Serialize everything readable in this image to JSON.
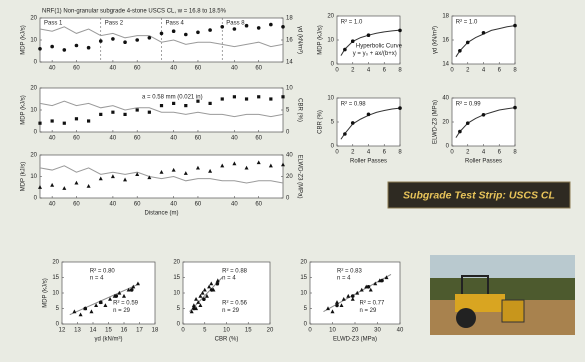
{
  "chart_data": [
    {
      "type": "line",
      "title": "NRF(1) Non-granular subgrade 4-stone USCS CL, w = 16.8 to 18.5%",
      "passes": [
        "Pass 1",
        "Pass 2",
        "Pass 4",
        "Pass 8"
      ],
      "ylabel": "MDP (kJ/s)",
      "y2label": "γd (kN/m³)",
      "x": [
        0,
        8,
        16,
        24,
        32,
        40,
        48,
        56,
        64,
        72,
        80,
        88,
        96,
        104,
        112,
        120,
        128,
        136,
        144,
        152,
        160
      ],
      "xlim": [
        0,
        160
      ],
      "xticks": [
        {
          "value": 8,
          "label": "40"
        },
        {
          "value": 24,
          "label": "60"
        },
        {
          "value": 48,
          "label": "40"
        },
        {
          "value": 64,
          "label": "60"
        },
        {
          "value": 88,
          "label": "40"
        },
        {
          "value": 104,
          "label": "60"
        },
        {
          "value": 128,
          "label": "40"
        },
        {
          "value": 144,
          "label": "60"
        }
      ],
      "ylim": [
        0,
        20
      ],
      "yticks": [
        0,
        10,
        20
      ],
      "y2lim": [
        14,
        18
      ],
      "y2ticks": [
        14,
        16,
        18
      ],
      "series": [
        {
          "color": "#9a9a9a",
          "mode": "line",
          "values": [
            15,
            14,
            16,
            13,
            15,
            12,
            13,
            11,
            12,
            12,
            9,
            10,
            8,
            9,
            9,
            8,
            7,
            8,
            9,
            7,
            8
          ]
        },
        {
          "color": "#111111",
          "mode": "points",
          "marker": "circle",
          "axis": "y2",
          "values": [
            15.2,
            15.4,
            15.1,
            15.5,
            15.3,
            15.9,
            16.1,
            15.8,
            16.0,
            16.2,
            16.6,
            16.8,
            16.5,
            16.7,
            16.9,
            17.2,
            17.0,
            17.3,
            17.1,
            17.4,
            17.2
          ]
        }
      ]
    },
    {
      "type": "line",
      "ylabel": "MDP (kJ/s)",
      "y2label": "CBR (%)",
      "annotations": [
        "a = 0.58 mm (0.021 in)"
      ],
      "x": [
        0,
        8,
        16,
        24,
        32,
        40,
        48,
        56,
        64,
        72,
        80,
        88,
        96,
        104,
        112,
        120,
        128,
        136,
        144,
        152,
        160
      ],
      "xlim": [
        0,
        160
      ],
      "xticks": [
        {
          "value": 8,
          "label": "40"
        },
        {
          "value": 24,
          "label": "60"
        },
        {
          "value": 48,
          "label": "40"
        },
        {
          "value": 64,
          "label": "60"
        },
        {
          "value": 88,
          "label": "40"
        },
        {
          "value": 104,
          "label": "60"
        },
        {
          "value": 128,
          "label": "40"
        },
        {
          "value": 144,
          "label": "60"
        }
      ],
      "ylim": [
        0,
        20
      ],
      "yticks": [
        0,
        10,
        20
      ],
      "y2lim": [
        0,
        10
      ],
      "y2ticks": [
        0,
        5,
        10
      ],
      "series": [
        {
          "color": "#9a9a9a",
          "mode": "line",
          "values": [
            13,
            12,
            14,
            12,
            13,
            11,
            12,
            10,
            11,
            11,
            9,
            9,
            8,
            9,
            8,
            8,
            7,
            8,
            8,
            7,
            8
          ]
        },
        {
          "color": "#111111",
          "mode": "points",
          "marker": "square",
          "axis": "y2",
          "values": [
            2,
            2.5,
            2,
            3,
            2.5,
            4,
            4.5,
            4,
            5,
            4.5,
            6,
            6.5,
            6,
            7,
            6.5,
            7.5,
            8,
            7.5,
            8,
            7.5,
            8
          ]
        }
      ]
    },
    {
      "type": "line",
      "ylabel": "MDP (kJ/s)",
      "y2label": "ELWD-Z3 (MPa)",
      "xlabel": "Distance (m)",
      "x": [
        0,
        8,
        16,
        24,
        32,
        40,
        48,
        56,
        64,
        72,
        80,
        88,
        96,
        104,
        112,
        120,
        128,
        136,
        144,
        152,
        160
      ],
      "xlim": [
        0,
        160
      ],
      "xticks": [
        {
          "value": 8,
          "label": "40"
        },
        {
          "value": 24,
          "label": "60"
        },
        {
          "value": 48,
          "label": "40"
        },
        {
          "value": 64,
          "label": "60"
        },
        {
          "value": 88,
          "label": "40"
        },
        {
          "value": 104,
          "label": "60"
        },
        {
          "value": 128,
          "label": "40"
        },
        {
          "value": 144,
          "label": "60"
        }
      ],
      "ylim": [
        0,
        20
      ],
      "yticks": [
        0,
        10,
        20
      ],
      "y2lim": [
        0,
        40
      ],
      "y2ticks": [
        0,
        20,
        40
      ],
      "series": [
        {
          "color": "#9a9a9a",
          "mode": "line",
          "values": [
            14,
            13,
            15,
            12,
            14,
            11,
            12,
            11,
            12,
            10,
            9,
            10,
            8,
            9,
            9,
            8,
            8,
            7,
            8,
            8,
            7
          ]
        },
        {
          "color": "#111111",
          "mode": "points",
          "marker": "triangle",
          "axis": "y2",
          "values": [
            10,
            12,
            9,
            14,
            11,
            18,
            20,
            17,
            22,
            19,
            24,
            26,
            23,
            28,
            25,
            30,
            32,
            28,
            33,
            30,
            31
          ]
        }
      ]
    },
    {
      "type": "scatter",
      "ylabel": "MDP (kJ/s)",
      "annotations": [
        "R² = 1.0",
        "Hyperbolic Curve",
        "y = y₀ + ax/(b+x)"
      ],
      "xlim": [
        0,
        8
      ],
      "xticks": [
        0,
        2,
        4,
        6,
        8
      ],
      "ylim": [
        0,
        20
      ],
      "yticks": [
        0,
        10,
        20
      ],
      "series": [
        {
          "color": "#333333",
          "mode": "line",
          "x": [
            0.5,
            1,
            2,
            3,
            4,
            5,
            6,
            7,
            8
          ],
          "values": [
            3.5,
            6.2,
            9.4,
            11,
            12,
            12.8,
            13.4,
            13.8,
            14.1
          ]
        },
        {
          "color": "#111111",
          "mode": "points",
          "marker": "circle",
          "x": [
            1,
            2,
            4,
            8
          ],
          "values": [
            6,
            9.5,
            12,
            14
          ]
        }
      ]
    },
    {
      "type": "scatter",
      "ylabel": "γd (kN/m³)",
      "annotations": [
        "R² = 1.0"
      ],
      "xlim": [
        0,
        8
      ],
      "xticks": [
        0,
        2,
        4,
        6,
        8
      ],
      "ylim": [
        14,
        18
      ],
      "yticks": [
        14,
        16,
        18
      ],
      "series": [
        {
          "color": "#333333",
          "mode": "line",
          "x": [
            0.5,
            1,
            2,
            3,
            4,
            5,
            6,
            7,
            8
          ],
          "values": [
            14.6,
            15.1,
            15.8,
            16.2,
            16.5,
            16.8,
            16.95,
            17.1,
            17.2
          ]
        },
        {
          "color": "#111111",
          "mode": "points",
          "marker": "circle",
          "x": [
            1,
            2,
            4,
            8
          ],
          "values": [
            15.1,
            15.8,
            16.6,
            17.2
          ]
        }
      ]
    },
    {
      "type": "scatter",
      "ylabel": "CBR (%)",
      "xlabel": "Roller Passes",
      "annotations": [
        "R² = 0.98"
      ],
      "xlim": [
        0,
        8
      ],
      "xticks": [
        0,
        2,
        4,
        6,
        8
      ],
      "ylim": [
        0,
        10
      ],
      "yticks": [
        0,
        5,
        10
      ],
      "series": [
        {
          "color": "#333333",
          "mode": "line",
          "x": [
            0.5,
            1,
            2,
            3,
            4,
            5,
            6,
            7,
            8
          ],
          "values": [
            1.4,
            2.6,
            4.6,
            5.6,
            6.4,
            7.0,
            7.4,
            7.7,
            7.9
          ]
        },
        {
          "color": "#111111",
          "mode": "points",
          "marker": "circle",
          "x": [
            1,
            2,
            4,
            8
          ],
          "values": [
            2.5,
            4.8,
            6.6,
            7.9
          ]
        }
      ]
    },
    {
      "type": "scatter",
      "ylabel": "ELWD-Z3 (MPa)",
      "xlabel": "Roller Passes",
      "annotations": [
        "R² = 0.99"
      ],
      "xlim": [
        0,
        8
      ],
      "xticks": [
        0,
        2,
        4,
        6,
        8
      ],
      "ylim": [
        0,
        40
      ],
      "yticks": [
        0,
        20,
        40
      ],
      "series": [
        {
          "color": "#333333",
          "mode": "line",
          "x": [
            0.5,
            1,
            2,
            3,
            4,
            5,
            6,
            7,
            8
          ],
          "values": [
            7,
            12,
            19,
            23,
            26,
            28,
            30,
            31,
            32
          ]
        },
        {
          "color": "#111111",
          "mode": "points",
          "marker": "circle",
          "x": [
            1,
            2,
            4,
            8
          ],
          "values": [
            12,
            19,
            26,
            32
          ]
        }
      ]
    },
    {
      "type": "scatter",
      "ylabel": "MDP (kJ/s)",
      "xlabel": "γd (kN/m³)",
      "annotations": [
        "R² = 0.80",
        "n = 4",
        "R² = 0.59",
        "n = 29"
      ],
      "xlim": [
        12,
        18
      ],
      "xticks": [
        12,
        13,
        14,
        15,
        16,
        17,
        18
      ],
      "ylim": [
        0,
        20
      ],
      "yticks": [
        0,
        5,
        10,
        15,
        20
      ],
      "series": [
        {
          "color": "#888888",
          "mode": "line",
          "x": [
            12.5,
            17
          ],
          "values": [
            3,
            13
          ]
        },
        {
          "color": "#111111",
          "mode": "points",
          "marker": "triangle",
          "x": [
            12.8,
            13.2,
            13.5,
            13.9,
            14.2,
            14.5,
            14.8,
            15.1,
            15.4,
            15.7,
            16.0,
            16.3,
            16.6,
            16.9
          ],
          "values": [
            4,
            3,
            5,
            4,
            6,
            7,
            6,
            8,
            9,
            10,
            9,
            11,
            12,
            13
          ]
        },
        {
          "color": "#111111",
          "mode": "points",
          "marker": "circle",
          "x": [
            13.5,
            14.5,
            15.5,
            16.5
          ],
          "values": [
            5,
            7,
            9,
            11
          ]
        }
      ]
    },
    {
      "type": "scatter",
      "xlabel": "CBR (%)",
      "annotations": [
        "R² = 0.88",
        "n = 4",
        "R² = 0.56",
        "n = 29"
      ],
      "xlim": [
        0,
        20
      ],
      "xticks": [
        0,
        5,
        10,
        15,
        20
      ],
      "ylim": [
        0,
        20
      ],
      "yticks": [
        0,
        5,
        10,
        15,
        20
      ],
      "series": [
        {
          "color": "#888888",
          "mode": "line",
          "x": [
            1.5,
            9
          ],
          "values": [
            4,
            15
          ]
        },
        {
          "color": "#111111",
          "mode": "points",
          "marker": "triangle",
          "x": [
            2,
            2.5,
            3,
            3,
            3.5,
            4,
            4,
            4.5,
            5,
            5.5,
            6,
            6.5,
            7,
            8
          ],
          "values": [
            4,
            6,
            5,
            8,
            7,
            9,
            6,
            10,
            11,
            9,
            12,
            13,
            11,
            14
          ]
        },
        {
          "color": "#111111",
          "mode": "points",
          "marker": "circle",
          "x": [
            2.5,
            4.8,
            6.6,
            7.9
          ],
          "values": [
            5,
            8,
            11,
            13
          ]
        }
      ]
    },
    {
      "type": "scatter",
      "xlabel": "ELWD-Z3 (MPa)",
      "annotations": [
        "R² = 0.83",
        "n = 4",
        "R² = 0.77",
        "n = 29"
      ],
      "xlim": [
        0,
        40
      ],
      "xticks": [
        0,
        10,
        20,
        30,
        40
      ],
      "ylim": [
        0,
        20
      ],
      "yticks": [
        0,
        5,
        10,
        15,
        20
      ],
      "series": [
        {
          "color": "#888888",
          "mode": "line",
          "x": [
            6,
            36
          ],
          "values": [
            4,
            16
          ]
        },
        {
          "color": "#111111",
          "mode": "points",
          "marker": "triangle",
          "x": [
            8,
            10,
            12,
            14,
            15,
            17,
            19,
            21,
            23,
            25,
            27,
            29,
            31,
            34
          ],
          "values": [
            5,
            4,
            7,
            6,
            8,
            9,
            8,
            10,
            11,
            12,
            11,
            13,
            14,
            15
          ]
        },
        {
          "color": "#111111",
          "mode": "points",
          "marker": "circle",
          "x": [
            12,
            19,
            26,
            32
          ],
          "values": [
            6,
            9,
            12,
            14
          ]
        }
      ]
    }
  ],
  "badge": {
    "text": "Subgrade Test Strip: USCS CL"
  }
}
